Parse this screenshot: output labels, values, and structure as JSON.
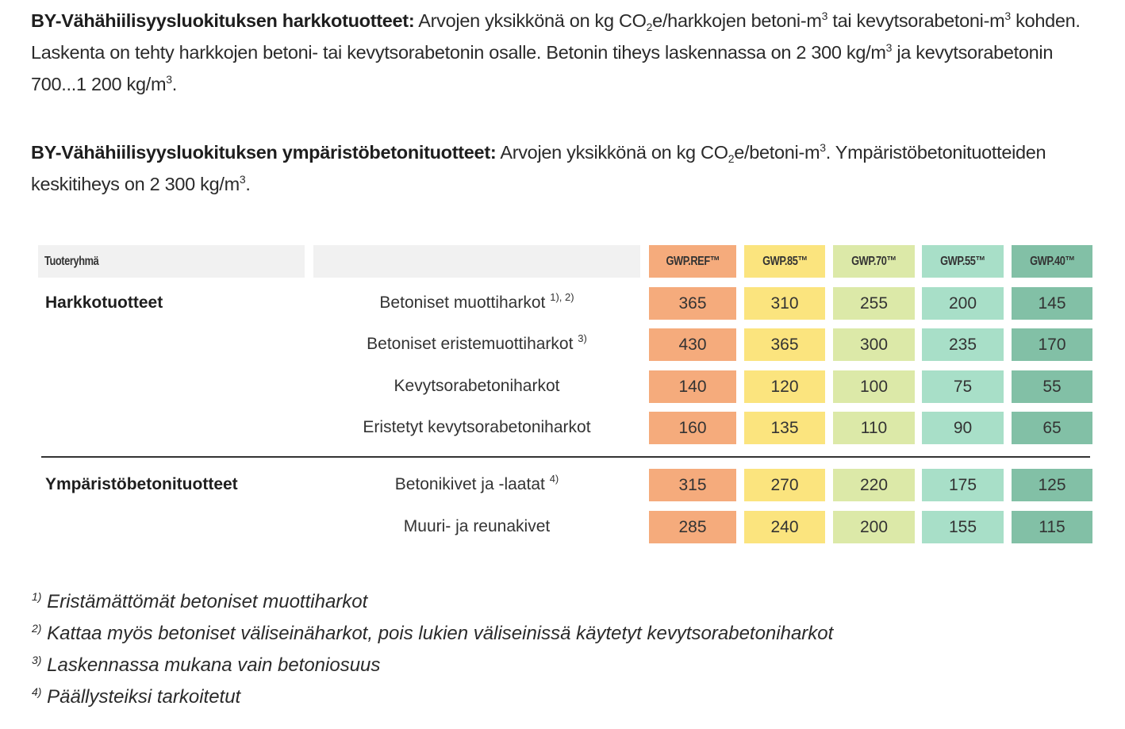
{
  "intro1": {
    "bold": "BY-Vähähiilisyysluokituksen harkkotuotteet:",
    "t1": " Arvojen yksikkönä on kg CO",
    "sub2": "2",
    "t2": "e/harkkojen betoni-m",
    "sup3a": "3",
    "t3": " tai kevytsorabetoni-m",
    "sup3b": "3",
    "t4": " kohden. Laskenta on tehty harkkojen betoni- tai kevytsorabetonin osalle. Betonin tiheys laskennassa on 2 300 kg/m",
    "sup3c": "3",
    "t5": " ja kevytsorabetonin 700...1 200 kg/m",
    "sup3d": "3",
    "t6": "."
  },
  "intro2": {
    "bold": "BY-Vähähiilisyysluokituksen ympäristöbetonituotteet:",
    "t1": " Arvojen yksikkönä on kg CO",
    "sub2": "2",
    "t2": "e/betoni-m",
    "sup3a": "3",
    "t3": ". Ympäristöbetonituotteiden keskitiheys on 2 300 kg/m",
    "sup3b": "3",
    "t4": "."
  },
  "table": {
    "group_header": "Tuoteryhmä",
    "columns": [
      "GWP.REF™",
      "GWP.85™",
      "GWP.70™",
      "GWP.55™",
      "GWP.40™"
    ],
    "column_colors": [
      "#f5ab7c",
      "#fbe47e",
      "#dce9a8",
      "#a8dfc8",
      "#82c0a6"
    ],
    "groups": [
      {
        "name": "Harkkotuotteet",
        "rows": [
          {
            "label": "Betoniset muottiharkot",
            "note": "1), 2)",
            "values": [
              "365",
              "310",
              "255",
              "200",
              "145"
            ]
          },
          {
            "label": "Betoniset eristemuottiharkot",
            "note": "3)",
            "values": [
              "430",
              "365",
              "300",
              "235",
              "170"
            ]
          },
          {
            "label": "Kevytsorabetoniharkot",
            "note": "",
            "values": [
              "140",
              "120",
              "100",
              "75",
              "55"
            ]
          },
          {
            "label": "Eristetyt kevytsorabetoniharkot",
            "note": "",
            "values": [
              "160",
              "135",
              "110",
              "90",
              "65"
            ]
          }
        ]
      },
      {
        "name": "Ympäristöbetonituotteet",
        "rows": [
          {
            "label": "Betonikivet ja -laatat",
            "note": "4)",
            "values": [
              "315",
              "270",
              "220",
              "175",
              "125"
            ]
          },
          {
            "label": "Muuri- ja reunakivet",
            "note": "",
            "values": [
              "285",
              "240",
              "200",
              "155",
              "115"
            ]
          }
        ]
      }
    ]
  },
  "footnotes": [
    {
      "mark": "1)",
      "text": "Eristämättömät betoniset muottiharkot"
    },
    {
      "mark": "2)",
      "text": "Kattaa myös betoniset väliseinäharkot, pois lukien väliseinissä käytetyt kevytsorabetoniharkot"
    },
    {
      "mark": "3)",
      "text": "Laskennassa mukana vain betoniosuus"
    },
    {
      "mark": "4)",
      "text": "Päällysteiksi tarkoitetut"
    }
  ]
}
